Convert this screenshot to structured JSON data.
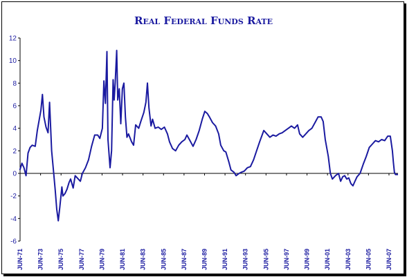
{
  "chart_data": {
    "type": "line",
    "title": "Real Federal Funds Rate",
    "xlabel": "",
    "ylabel": "",
    "ylim": [
      -6,
      12
    ],
    "y_ticks": [
      -6,
      -4,
      -2,
      0,
      2,
      4,
      6,
      8,
      10,
      12
    ],
    "x_tick_labels": [
      "JUN-71",
      "JUN-73",
      "JUN-75",
      "JUN-77",
      "JUN-79",
      "JUN-81",
      "JUN-83",
      "JUN-85",
      "JUN-87",
      "JUN-89",
      "JUN-91",
      "JUN-93",
      "JUN-95",
      "JUN-97",
      "JUN-99",
      "JUN-01",
      "JUN-03",
      "JUN-05",
      "JUN-07"
    ],
    "x_range": [
      1971.42,
      2008.3
    ],
    "grid": false,
    "legend": "none",
    "series": [
      {
        "color": "#1a1aa0",
        "points": [
          [
            1971.4,
            0.3
          ],
          [
            1971.6,
            0.9
          ],
          [
            1971.8,
            0.5
          ],
          [
            1972.0,
            -0.2
          ],
          [
            1972.2,
            1.8
          ],
          [
            1972.4,
            2.3
          ],
          [
            1972.6,
            2.5
          ],
          [
            1972.9,
            2.4
          ],
          [
            1973.1,
            3.8
          ],
          [
            1973.3,
            4.8
          ],
          [
            1973.45,
            5.6
          ],
          [
            1973.6,
            7.0
          ],
          [
            1973.75,
            5.0
          ],
          [
            1973.95,
            4.1
          ],
          [
            1974.15,
            3.6
          ],
          [
            1974.3,
            6.3
          ],
          [
            1974.5,
            2.0
          ],
          [
            1974.7,
            0.0
          ],
          [
            1974.85,
            -1.5
          ],
          [
            1975.0,
            -3.2
          ],
          [
            1975.15,
            -4.2
          ],
          [
            1975.3,
            -3.0
          ],
          [
            1975.5,
            -1.2
          ],
          [
            1975.6,
            -2.0
          ],
          [
            1975.8,
            -1.8
          ],
          [
            1976.0,
            -1.4
          ],
          [
            1976.2,
            -0.8
          ],
          [
            1976.35,
            -0.5
          ],
          [
            1976.6,
            -1.3
          ],
          [
            1976.8,
            -0.2
          ],
          [
            1977.1,
            -0.5
          ],
          [
            1977.3,
            -0.7
          ],
          [
            1977.5,
            0.0
          ],
          [
            1977.8,
            0.5
          ],
          [
            1978.1,
            1.2
          ],
          [
            1978.4,
            2.4
          ],
          [
            1978.7,
            3.4
          ],
          [
            1979.0,
            3.4
          ],
          [
            1979.2,
            3.1
          ],
          [
            1979.45,
            4.0
          ],
          [
            1979.6,
            8.2
          ],
          [
            1979.75,
            6.2
          ],
          [
            1979.9,
            10.8
          ],
          [
            1980.0,
            3.0
          ],
          [
            1980.2,
            0.5
          ],
          [
            1980.35,
            2.0
          ],
          [
            1980.5,
            8.3
          ],
          [
            1980.6,
            6.5
          ],
          [
            1980.7,
            8.0
          ],
          [
            1980.85,
            10.9
          ],
          [
            1980.95,
            6.5
          ],
          [
            1981.1,
            7.5
          ],
          [
            1981.25,
            4.4
          ],
          [
            1981.4,
            7.5
          ],
          [
            1981.55,
            8.0
          ],
          [
            1981.7,
            5.0
          ],
          [
            1981.85,
            3.2
          ],
          [
            1982.0,
            3.5
          ],
          [
            1982.3,
            2.8
          ],
          [
            1982.5,
            2.5
          ],
          [
            1982.7,
            4.3
          ],
          [
            1983.0,
            4.0
          ],
          [
            1983.2,
            4.6
          ],
          [
            1983.5,
            5.4
          ],
          [
            1983.7,
            6.3
          ],
          [
            1983.85,
            8.0
          ],
          [
            1984.0,
            5.8
          ],
          [
            1984.2,
            4.2
          ],
          [
            1984.35,
            4.8
          ],
          [
            1984.6,
            4.0
          ],
          [
            1984.9,
            4.1
          ],
          [
            1985.2,
            3.9
          ],
          [
            1985.5,
            4.1
          ],
          [
            1985.8,
            3.5
          ],
          [
            1986.0,
            2.8
          ],
          [
            1986.3,
            2.2
          ],
          [
            1986.6,
            2.0
          ],
          [
            1986.9,
            2.5
          ],
          [
            1987.2,
            2.8
          ],
          [
            1987.5,
            3.0
          ],
          [
            1987.7,
            3.4
          ],
          [
            1988.0,
            2.9
          ],
          [
            1988.3,
            2.4
          ],
          [
            1988.6,
            3.0
          ],
          [
            1988.9,
            3.8
          ],
          [
            1989.2,
            4.8
          ],
          [
            1989.45,
            5.5
          ],
          [
            1989.7,
            5.3
          ],
          [
            1989.9,
            5.0
          ],
          [
            1990.2,
            4.5
          ],
          [
            1990.5,
            4.2
          ],
          [
            1990.8,
            3.5
          ],
          [
            1991.0,
            2.5
          ],
          [
            1991.3,
            2.0
          ],
          [
            1991.5,
            1.9
          ],
          [
            1991.8,
            1.0
          ],
          [
            1992.0,
            0.3
          ],
          [
            1992.3,
            0.1
          ],
          [
            1992.5,
            -0.2
          ],
          [
            1992.8,
            0.0
          ],
          [
            1993.0,
            0.1
          ],
          [
            1993.3,
            0.2
          ],
          [
            1993.6,
            0.5
          ],
          [
            1993.9,
            0.6
          ],
          [
            1994.2,
            1.2
          ],
          [
            1994.5,
            2.0
          ],
          [
            1994.8,
            2.8
          ],
          [
            1995.0,
            3.3
          ],
          [
            1995.2,
            3.8
          ],
          [
            1995.5,
            3.5
          ],
          [
            1995.8,
            3.2
          ],
          [
            1996.1,
            3.4
          ],
          [
            1996.4,
            3.3
          ],
          [
            1996.7,
            3.5
          ],
          [
            1997.0,
            3.6
          ],
          [
            1997.3,
            3.8
          ],
          [
            1997.6,
            4.0
          ],
          [
            1997.9,
            4.2
          ],
          [
            1998.2,
            4.0
          ],
          [
            1998.5,
            4.3
          ],
          [
            1998.7,
            3.5
          ],
          [
            1999.0,
            3.2
          ],
          [
            1999.3,
            3.5
          ],
          [
            1999.6,
            3.8
          ],
          [
            1999.9,
            4.0
          ],
          [
            2000.2,
            4.5
          ],
          [
            2000.5,
            5.0
          ],
          [
            2000.8,
            5.0
          ],
          [
            2001.0,
            4.6
          ],
          [
            2001.2,
            3.0
          ],
          [
            2001.5,
            1.5
          ],
          [
            2001.7,
            0.0
          ],
          [
            2001.9,
            -0.5
          ],
          [
            2002.2,
            -0.2
          ],
          [
            2002.5,
            0.0
          ],
          [
            2002.7,
            -0.7
          ],
          [
            2002.9,
            -0.3
          ],
          [
            2003.1,
            -0.2
          ],
          [
            2003.3,
            -0.5
          ],
          [
            2003.5,
            -0.4
          ],
          [
            2003.7,
            -0.9
          ],
          [
            2003.9,
            -1.1
          ],
          [
            2004.1,
            -0.7
          ],
          [
            2004.3,
            -0.3
          ],
          [
            2004.6,
            0.0
          ],
          [
            2004.9,
            0.8
          ],
          [
            2005.2,
            1.5
          ],
          [
            2005.5,
            2.3
          ],
          [
            2005.8,
            2.6
          ],
          [
            2006.1,
            2.9
          ],
          [
            2006.4,
            2.8
          ],
          [
            2006.7,
            3.0
          ],
          [
            2007.0,
            2.9
          ],
          [
            2007.3,
            3.3
          ],
          [
            2007.55,
            3.3
          ],
          [
            2007.75,
            2.0
          ],
          [
            2007.85,
            1.0
          ],
          [
            2007.95,
            0.1
          ],
          [
            2008.05,
            -0.1
          ],
          [
            2008.3,
            -0.1
          ]
        ]
      }
    ]
  }
}
